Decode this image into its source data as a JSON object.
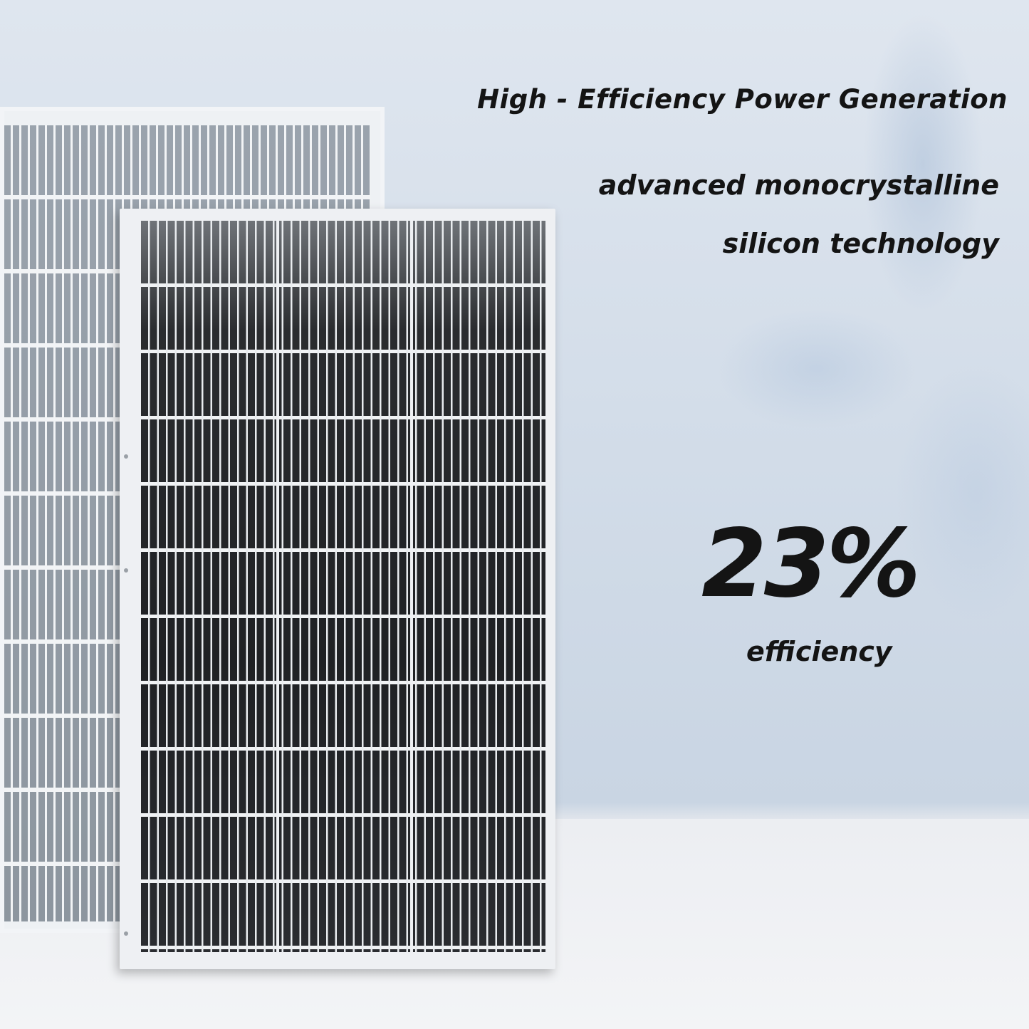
{
  "headline": "High - Efficiency Power Generation",
  "subtitle_line1": "advanced monocrystalline",
  "subtitle_line2": "silicon technology",
  "efficiency_value": "23%",
  "efficiency_label": "efficiency",
  "colors": {
    "background": "#d3dde9",
    "panel_cells": "#1f2124",
    "panel_frame": "#eef0f3",
    "text": "#141414"
  }
}
